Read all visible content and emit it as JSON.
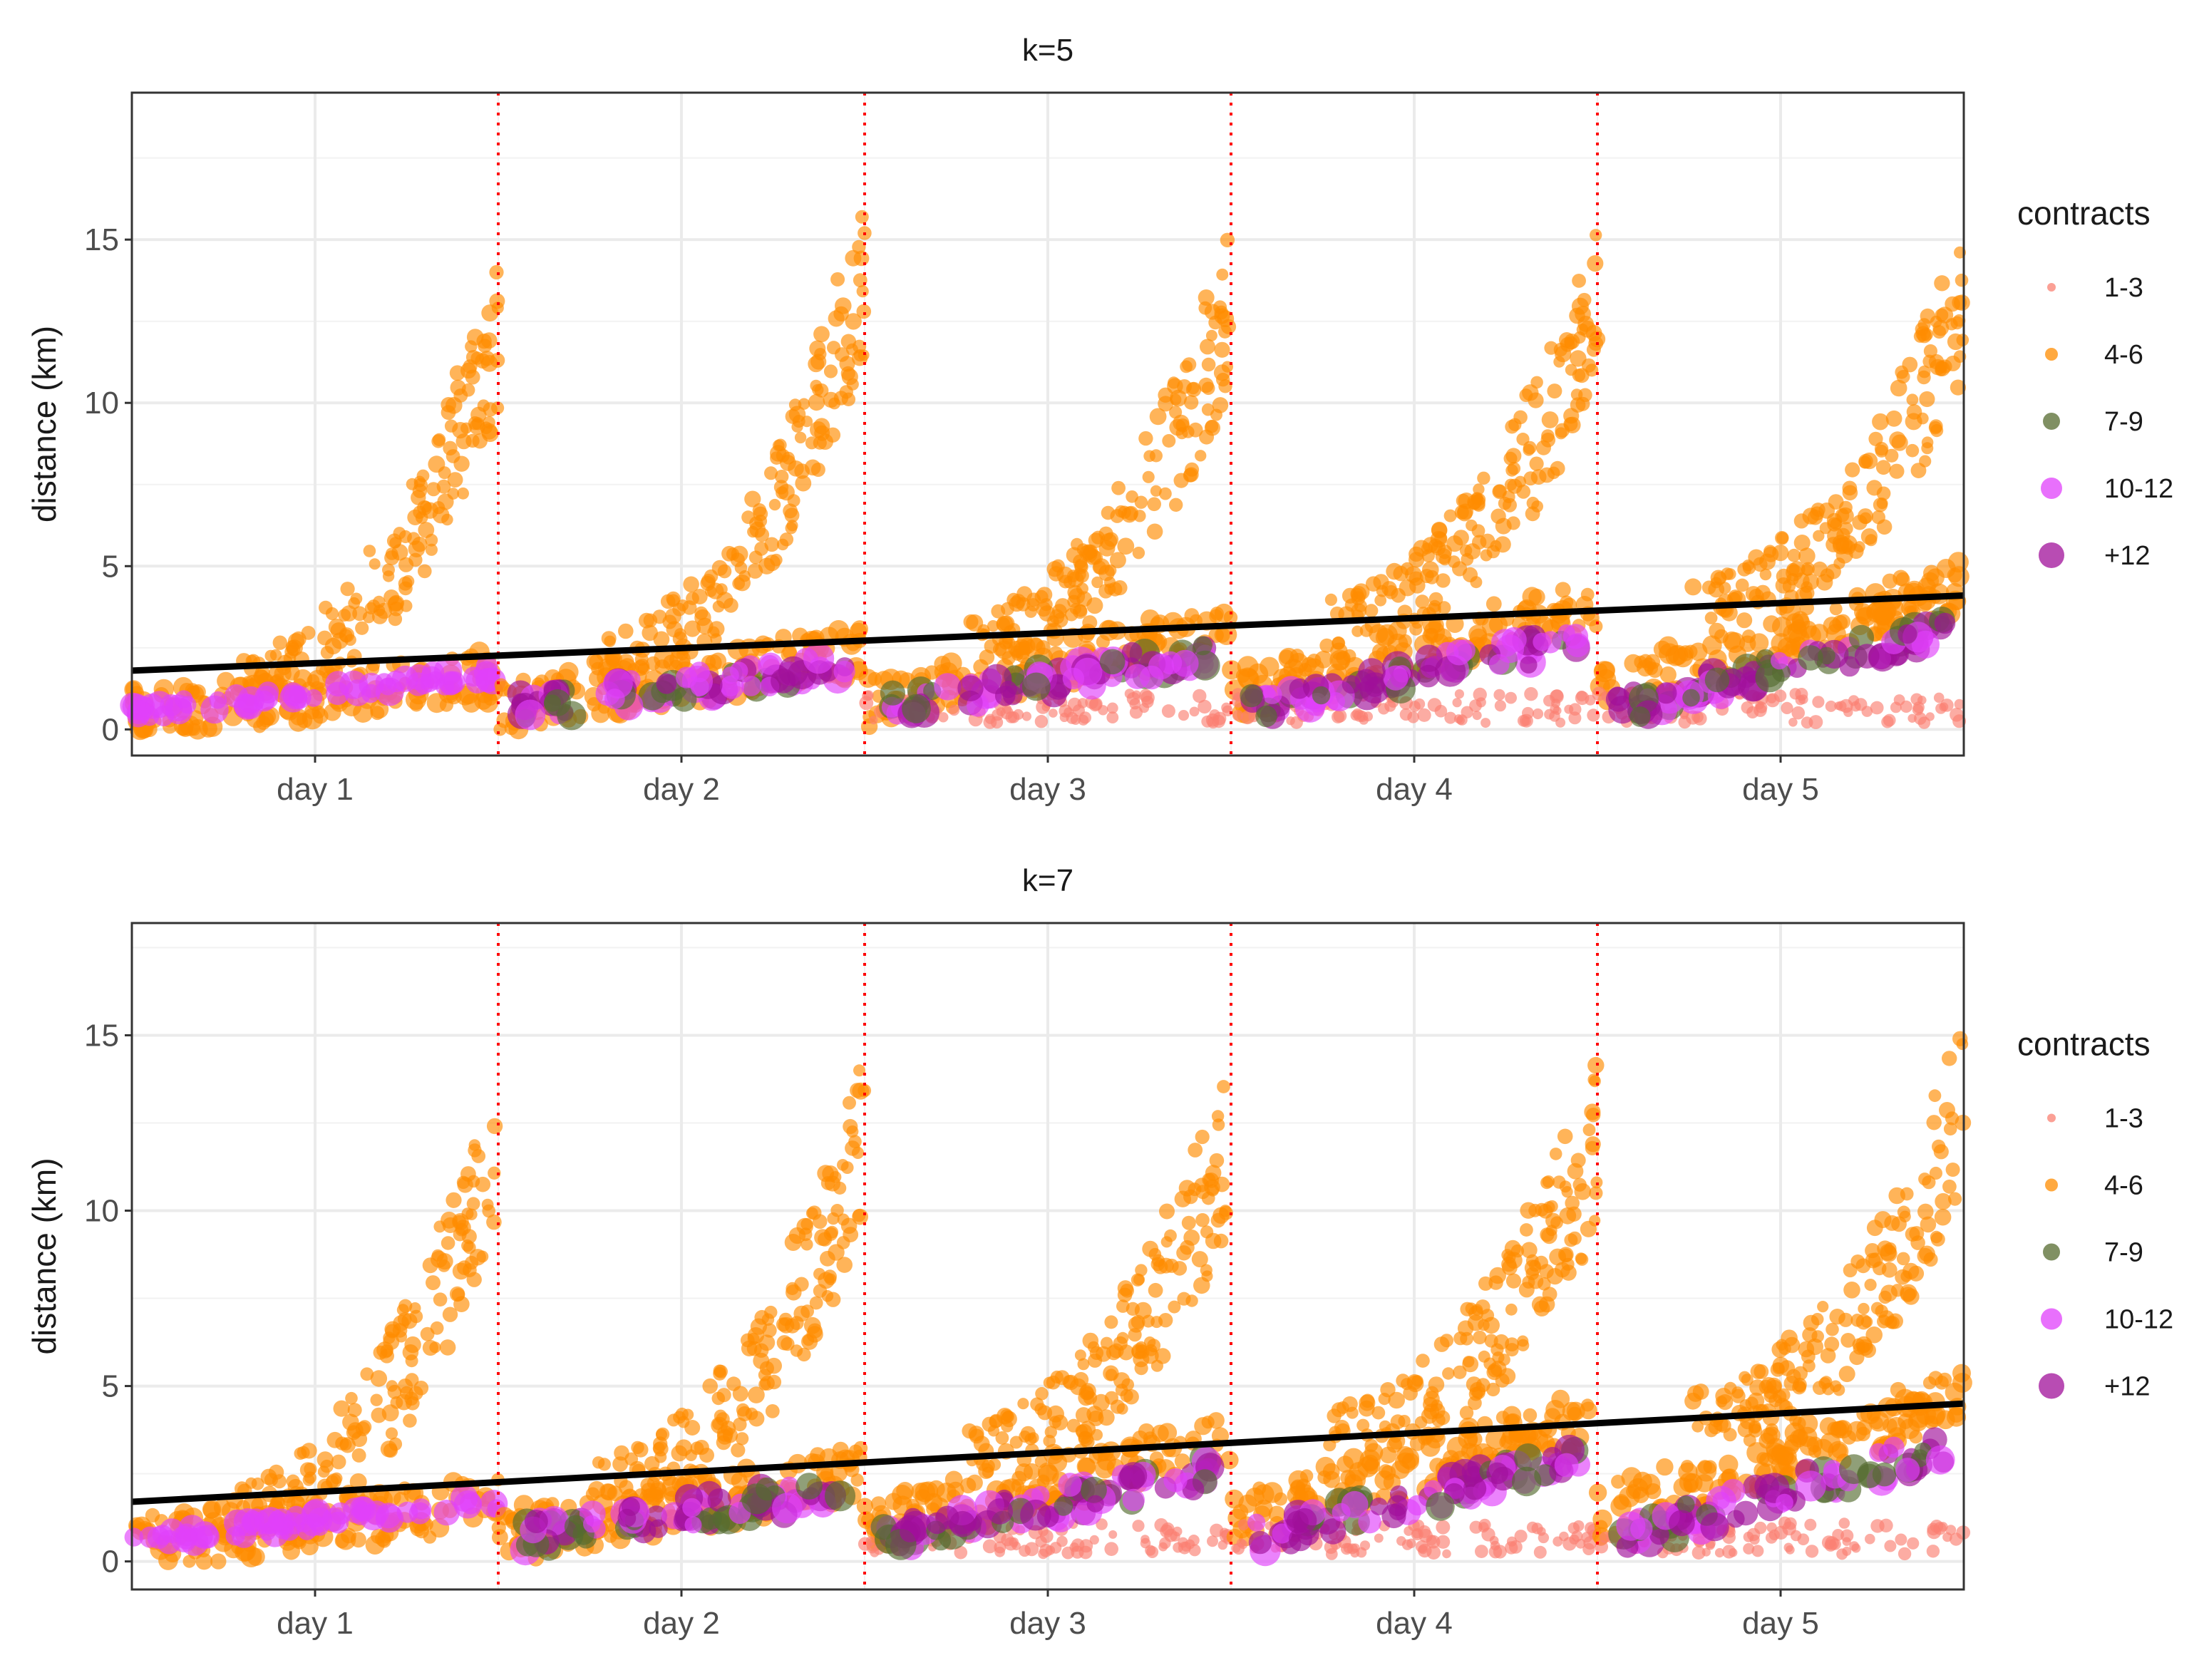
{
  "chart_data": [
    {
      "type": "scatter",
      "title": "k=5",
      "xlabel": "",
      "ylabel": "distance (km)",
      "x_categories": [
        "day 1",
        "day 2",
        "day 3",
        "day 4",
        "day 5"
      ],
      "day_boundaries": [
        1.5,
        2.5,
        3.5,
        4.5
      ],
      "xlim": [
        0.5,
        5.5
      ],
      "ylim": [
        -0.8,
        19.5
      ],
      "y_ticks": [
        0,
        5,
        10,
        15
      ],
      "grid": true,
      "legend": {
        "title": "contracts",
        "position": "right",
        "entries": [
          "1-3",
          "4-6",
          "7-9",
          "10-12",
          "+12"
        ]
      },
      "trend_line": {
        "x": [
          0.5,
          5.5
        ],
        "y": [
          1.8,
          4.1
        ]
      },
      "series_profile": {
        "orange_peak_by_day": [
          12,
          14,
          13,
          13,
          13
        ],
        "orange_baseline_by_day": [
          1.5,
          2.2,
          2.8,
          3.5,
          4.0
        ],
        "cluster_start_day": 2
      },
      "series_colors": {
        "1-3": "#fa8072",
        "4-6": "#ff8c00",
        "7-9": "#556b2f",
        "10-12": "#e040fb",
        "+12": "#a0109a"
      },
      "seed": 5
    },
    {
      "type": "scatter",
      "title": "k=7",
      "xlabel": "",
      "ylabel": "distance (km)",
      "x_categories": [
        "day 1",
        "day 2",
        "day 3",
        "day 4",
        "day 5"
      ],
      "day_boundaries": [
        1.5,
        2.5,
        3.5,
        4.5
      ],
      "xlim": [
        0.5,
        5.5
      ],
      "ylim": [
        -0.8,
        18.2
      ],
      "y_ticks": [
        0,
        5,
        10,
        15
      ],
      "grid": true,
      "legend": {
        "title": "contracts",
        "position": "right",
        "entries": [
          "1-3",
          "4-6",
          "7-9",
          "10-12",
          "+12"
        ]
      },
      "trend_line": {
        "x": [
          0.5,
          5.5
        ],
        "y": [
          1.7,
          4.5
        ]
      },
      "series_profile": {
        "orange_peak_by_day": [
          12,
          12,
          12,
          12,
          13
        ],
        "orange_baseline_by_day": [
          1.5,
          2.3,
          3.2,
          3.8,
          4.3
        ],
        "cluster_start_day": 2
      },
      "series_colors": {
        "1-3": "#fa8072",
        "4-6": "#ff8c00",
        "7-9": "#556b2f",
        "10-12": "#e040fb",
        "+12": "#a0109a"
      },
      "seed": 7
    }
  ]
}
